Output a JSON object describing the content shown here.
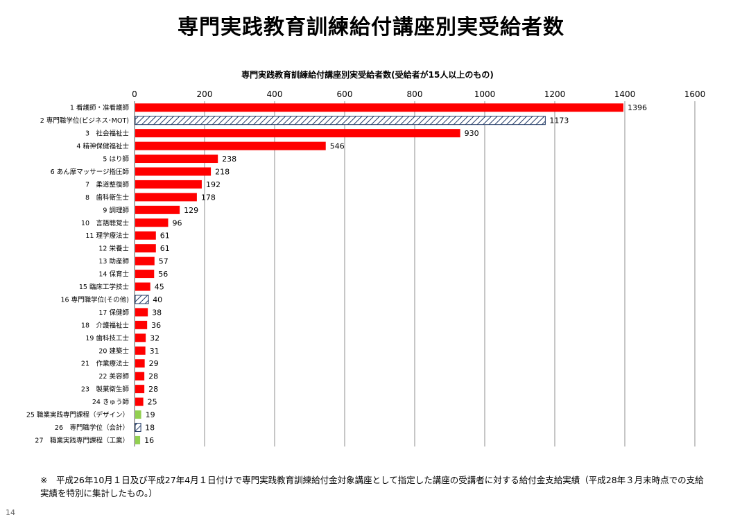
{
  "page": {
    "title": "専門実践教育訓練給付講座別実受給者数",
    "footnote": "※　平成26年10月１日及び平成27年4月１日付けで専門実践教育訓練給付金対象講座として指定した講座の受講者に対する給付金支給実績（平成28年３月末時点での支給実績を特別に集計したもの。）",
    "page_number": "14"
  },
  "chart_data": {
    "type": "bar",
    "orientation": "horizontal",
    "title": "専門実践教育訓練給付講座別実受給者数(受給者が15人以上のもの)",
    "xlim": [
      0,
      1600
    ],
    "x_ticks": [
      0,
      200,
      400,
      600,
      800,
      1000,
      1200,
      1400,
      1600
    ],
    "grid": true,
    "colors": {
      "red": "#ff0000",
      "green": "#92d050",
      "hatch": "#1f3864"
    },
    "categories": [
      "1  看護師・准看護師",
      "2  専門職学位(ビジネス･MOT)",
      "3　社会福祉士",
      "4  精神保健福祉士",
      "5  はり師",
      "6  あん摩マッサージ指圧師",
      "7　柔道整復師",
      "8　歯科衛生士",
      "9  調理師",
      "10　言語聴覚士",
      "11  理学療法士",
      "12  栄養士",
      "13  助産師",
      "14  保育士",
      "15  臨床工学技士",
      "16  専門職学位(その他)",
      "17  保健師",
      "18　介護福祉士",
      "19  歯科技工士",
      "20  建築士",
      "21　作業療法士",
      "22  美容師",
      "23　製菓衛生師",
      "24  きゅう師",
      "25  職業実践専門課程（デザイン）",
      "26　専門職学位（会計）",
      "27　職業実践専門課程（工業）"
    ],
    "values": [
      1396,
      1173,
      930,
      546,
      238,
      218,
      192,
      178,
      129,
      96,
      61,
      61,
      57,
      56,
      45,
      40,
      38,
      36,
      32,
      31,
      29,
      28,
      28,
      25,
      19,
      18,
      16
    ],
    "value_labels": [
      "1396",
      "1173",
      "930",
      "546",
      "238",
      "218",
      "192",
      "178",
      "129",
      "96",
      "61",
      "61",
      "57",
      "56",
      "45",
      "40",
      "38",
      "36",
      "32",
      "31",
      "29",
      "28",
      "28",
      "25",
      "19",
      "18",
      "16"
    ],
    "styles": [
      "red",
      "hatch",
      "red",
      "red",
      "red",
      "red",
      "red",
      "red",
      "red",
      "red",
      "red",
      "red",
      "red",
      "red",
      "red",
      "hatch",
      "red",
      "red",
      "red",
      "red",
      "red",
      "red",
      "red",
      "red",
      "green",
      "hatch",
      "green"
    ]
  }
}
